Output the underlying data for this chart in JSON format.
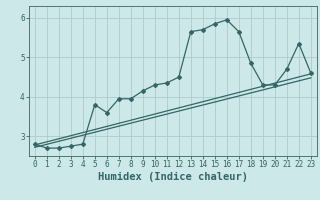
{
  "xlabel": "Humidex (Indice chaleur)",
  "ylabel": "",
  "bg_color": "#cce8e8",
  "grid_color": "#aacccc",
  "line_color": "#336666",
  "xlim": [
    -0.5,
    23.5
  ],
  "ylim": [
    2.5,
    6.3
  ],
  "yticks": [
    3,
    4,
    5,
    6
  ],
  "xticks": [
    0,
    1,
    2,
    3,
    4,
    5,
    6,
    7,
    8,
    9,
    10,
    11,
    12,
    13,
    14,
    15,
    16,
    17,
    18,
    19,
    20,
    21,
    22,
    23
  ],
  "series1_x": [
    0,
    1,
    2,
    3,
    4,
    5,
    6,
    7,
    8,
    9,
    10,
    11,
    12,
    13,
    14,
    15,
    16,
    17,
    18,
    19,
    20,
    21,
    22,
    23
  ],
  "series1_y": [
    2.8,
    2.7,
    2.7,
    2.75,
    2.8,
    3.8,
    3.6,
    3.95,
    3.95,
    4.15,
    4.3,
    4.35,
    4.5,
    5.65,
    5.7,
    5.85,
    5.95,
    5.65,
    4.85,
    4.3,
    4.3,
    4.7,
    5.35,
    4.6
  ],
  "series2_x": [
    0,
    23
  ],
  "series2_y": [
    2.78,
    4.58
  ],
  "series3_x": [
    0,
    23
  ],
  "series3_y": [
    2.72,
    4.48
  ],
  "tick_fontsize": 5.5,
  "label_fontsize": 7.5
}
